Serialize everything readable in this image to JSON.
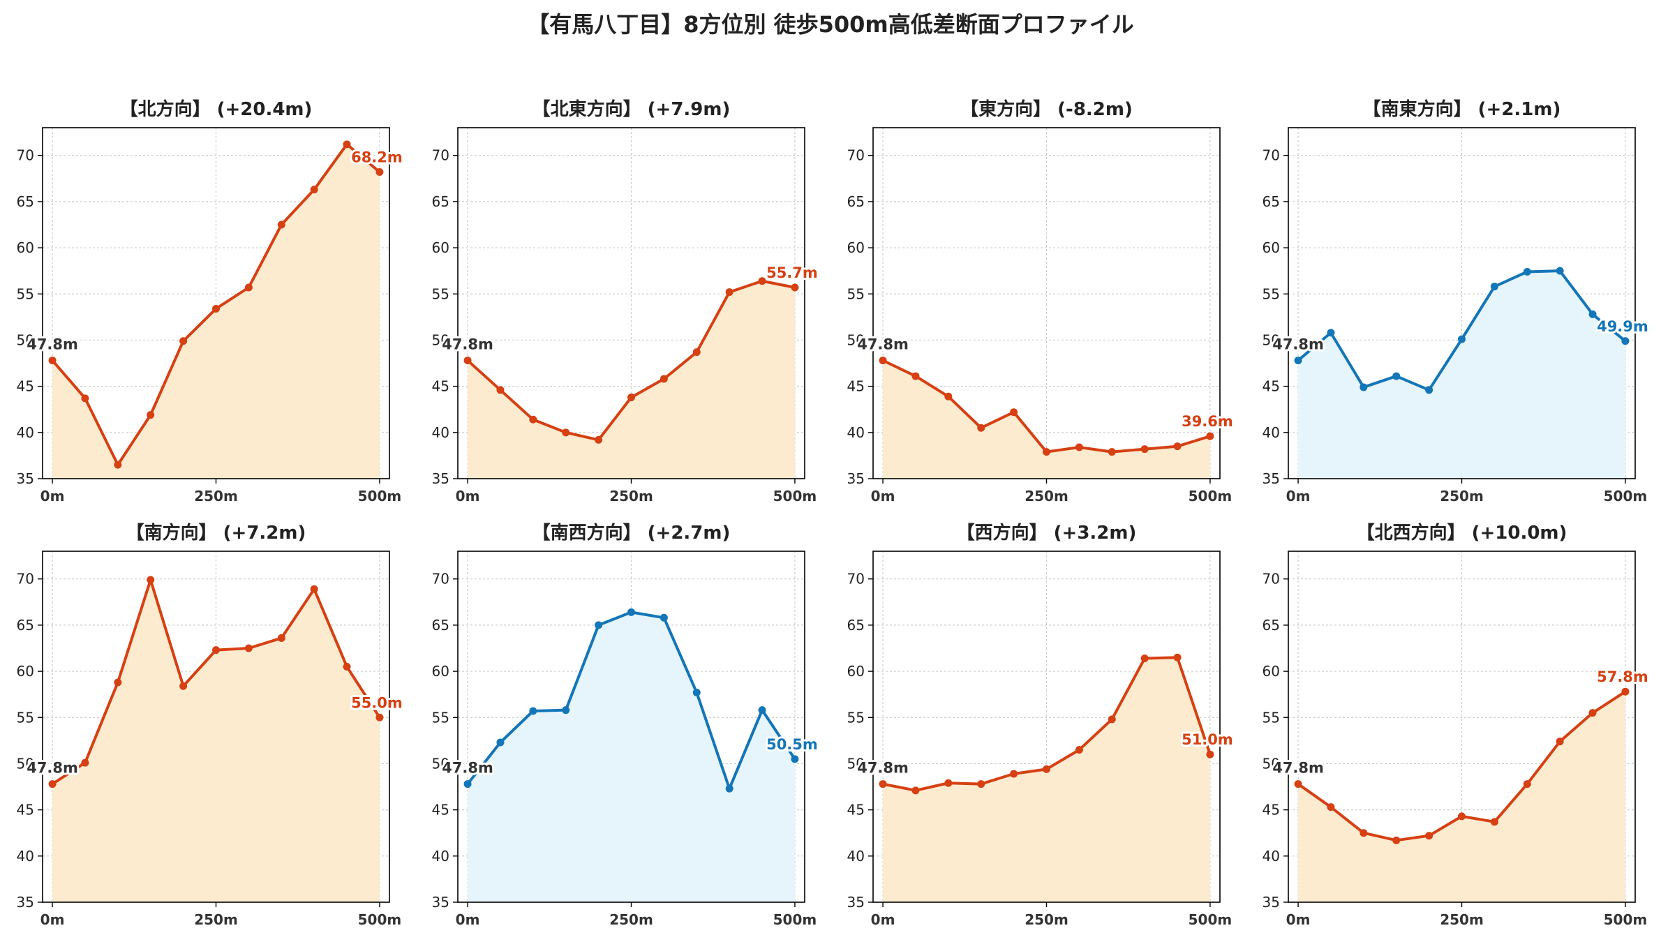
{
  "title": "【有馬八丁目】8方位別 徒歩500m高低差断面プロファイル",
  "colors": {
    "up": "#d64012",
    "up_fill": "#fdebd0",
    "down": "#1276b8",
    "down_fill": "#e6f4fb",
    "start_label": "#333333",
    "grid": "#cccccc"
  },
  "chart_data": [
    {
      "type": "area",
      "title": "【北方向】 (+20.4m)",
      "x": [
        0,
        50,
        100,
        150,
        200,
        250,
        300,
        350,
        400,
        450,
        500
      ],
      "y": [
        47.8,
        43.7,
        36.5,
        41.9,
        49.9,
        53.4,
        55.7,
        62.5,
        66.3,
        71.2,
        68.2
      ],
      "start_label": "47.8m",
      "end_label": "68.2m",
      "scheme": "orange",
      "xticks": [
        "0m",
        "250m",
        "500m"
      ],
      "xtick_values": [
        0,
        250,
        500
      ],
      "yticks": [
        35,
        40,
        45,
        50,
        55,
        60,
        65,
        70
      ],
      "xlim": [
        -15,
        515
      ],
      "ylim": [
        35,
        73
      ],
      "grid": true
    },
    {
      "type": "area",
      "title": "【北東方向】 (+7.9m)",
      "x": [
        0,
        50,
        100,
        150,
        200,
        250,
        300,
        350,
        400,
        450,
        500
      ],
      "y": [
        47.8,
        44.6,
        41.4,
        40.0,
        39.2,
        43.8,
        45.8,
        48.7,
        55.2,
        56.4,
        55.7
      ],
      "start_label": "47.8m",
      "end_label": "55.7m",
      "scheme": "orange",
      "xticks": [
        "0m",
        "250m",
        "500m"
      ],
      "xtick_values": [
        0,
        250,
        500
      ],
      "yticks": [
        35,
        40,
        45,
        50,
        55,
        60,
        65,
        70
      ],
      "xlim": [
        -15,
        515
      ],
      "ylim": [
        35,
        73
      ],
      "grid": true
    },
    {
      "type": "area",
      "title": "【東方向】 (-8.2m)",
      "x": [
        0,
        50,
        100,
        150,
        200,
        250,
        300,
        350,
        400,
        450,
        500
      ],
      "y": [
        47.8,
        46.1,
        43.9,
        40.5,
        42.2,
        37.9,
        38.4,
        37.9,
        38.2,
        38.5,
        39.6
      ],
      "start_label": "47.8m",
      "end_label": "39.6m",
      "scheme": "orange",
      "xticks": [
        "0m",
        "250m",
        "500m"
      ],
      "xtick_values": [
        0,
        250,
        500
      ],
      "yticks": [
        35,
        40,
        45,
        50,
        55,
        60,
        65,
        70
      ],
      "xlim": [
        -15,
        515
      ],
      "ylim": [
        35,
        73
      ],
      "grid": true
    },
    {
      "type": "area",
      "title": "【南東方向】 (+2.1m)",
      "x": [
        0,
        50,
        100,
        150,
        200,
        250,
        300,
        350,
        400,
        450,
        500
      ],
      "y": [
        47.8,
        50.8,
        44.9,
        46.1,
        44.6,
        50.1,
        55.8,
        57.4,
        57.5,
        52.8,
        49.9
      ],
      "start_label": "47.8m",
      "end_label": "49.9m",
      "scheme": "blue",
      "xticks": [
        "0m",
        "250m",
        "500m"
      ],
      "xtick_values": [
        0,
        250,
        500
      ],
      "yticks": [
        35,
        40,
        45,
        50,
        55,
        60,
        65,
        70
      ],
      "xlim": [
        -15,
        515
      ],
      "ylim": [
        35,
        73
      ],
      "grid": true
    },
    {
      "type": "area",
      "title": "【南方向】 (+7.2m)",
      "x": [
        0,
        50,
        100,
        150,
        200,
        250,
        300,
        350,
        400,
        450,
        500
      ],
      "y": [
        47.8,
        50.1,
        58.8,
        69.9,
        58.4,
        62.3,
        62.5,
        63.6,
        68.9,
        60.5,
        55.0
      ],
      "start_label": "47.8m",
      "end_label": "55.0m",
      "scheme": "orange",
      "xticks": [
        "0m",
        "250m",
        "500m"
      ],
      "xtick_values": [
        0,
        250,
        500
      ],
      "yticks": [
        35,
        40,
        45,
        50,
        55,
        60,
        65,
        70
      ],
      "xlim": [
        -15,
        515
      ],
      "ylim": [
        35,
        73
      ],
      "grid": true
    },
    {
      "type": "area",
      "title": "【南西方向】 (+2.7m)",
      "x": [
        0,
        50,
        100,
        150,
        200,
        250,
        300,
        350,
        400,
        450,
        500
      ],
      "y": [
        47.8,
        52.3,
        55.7,
        55.8,
        65.0,
        66.4,
        65.8,
        57.7,
        47.3,
        55.8,
        50.5
      ],
      "start_label": "47.8m",
      "end_label": "50.5m",
      "scheme": "blue",
      "xticks": [
        "0m",
        "250m",
        "500m"
      ],
      "xtick_values": [
        0,
        250,
        500
      ],
      "yticks": [
        35,
        40,
        45,
        50,
        55,
        60,
        65,
        70
      ],
      "xlim": [
        -15,
        515
      ],
      "ylim": [
        35,
        73
      ],
      "grid": true
    },
    {
      "type": "area",
      "title": "【西方向】 (+3.2m)",
      "x": [
        0,
        50,
        100,
        150,
        200,
        250,
        300,
        350,
        400,
        450,
        500
      ],
      "y": [
        47.8,
        47.1,
        47.9,
        47.8,
        48.9,
        49.4,
        51.5,
        54.8,
        61.4,
        61.5,
        51.0
      ],
      "start_label": "47.8m",
      "end_label": "51.0m",
      "scheme": "orange",
      "xticks": [
        "0m",
        "250m",
        "500m"
      ],
      "xtick_values": [
        0,
        250,
        500
      ],
      "yticks": [
        35,
        40,
        45,
        50,
        55,
        60,
        65,
        70
      ],
      "xlim": [
        -15,
        515
      ],
      "ylim": [
        35,
        73
      ],
      "grid": true
    },
    {
      "type": "area",
      "title": "【北西方向】 (+10.0m)",
      "x": [
        0,
        50,
        100,
        150,
        200,
        250,
        300,
        350,
        400,
        450,
        500
      ],
      "y": [
        47.8,
        45.3,
        42.5,
        41.7,
        42.2,
        44.3,
        43.7,
        47.8,
        52.4,
        55.5,
        57.8
      ],
      "start_label": "47.8m",
      "end_label": "57.8m",
      "scheme": "orange",
      "xticks": [
        "0m",
        "250m",
        "500m"
      ],
      "xtick_values": [
        0,
        250,
        500
      ],
      "yticks": [
        35,
        40,
        45,
        50,
        55,
        60,
        65,
        70
      ],
      "xlim": [
        -15,
        515
      ],
      "ylim": [
        35,
        73
      ],
      "grid": true
    }
  ]
}
